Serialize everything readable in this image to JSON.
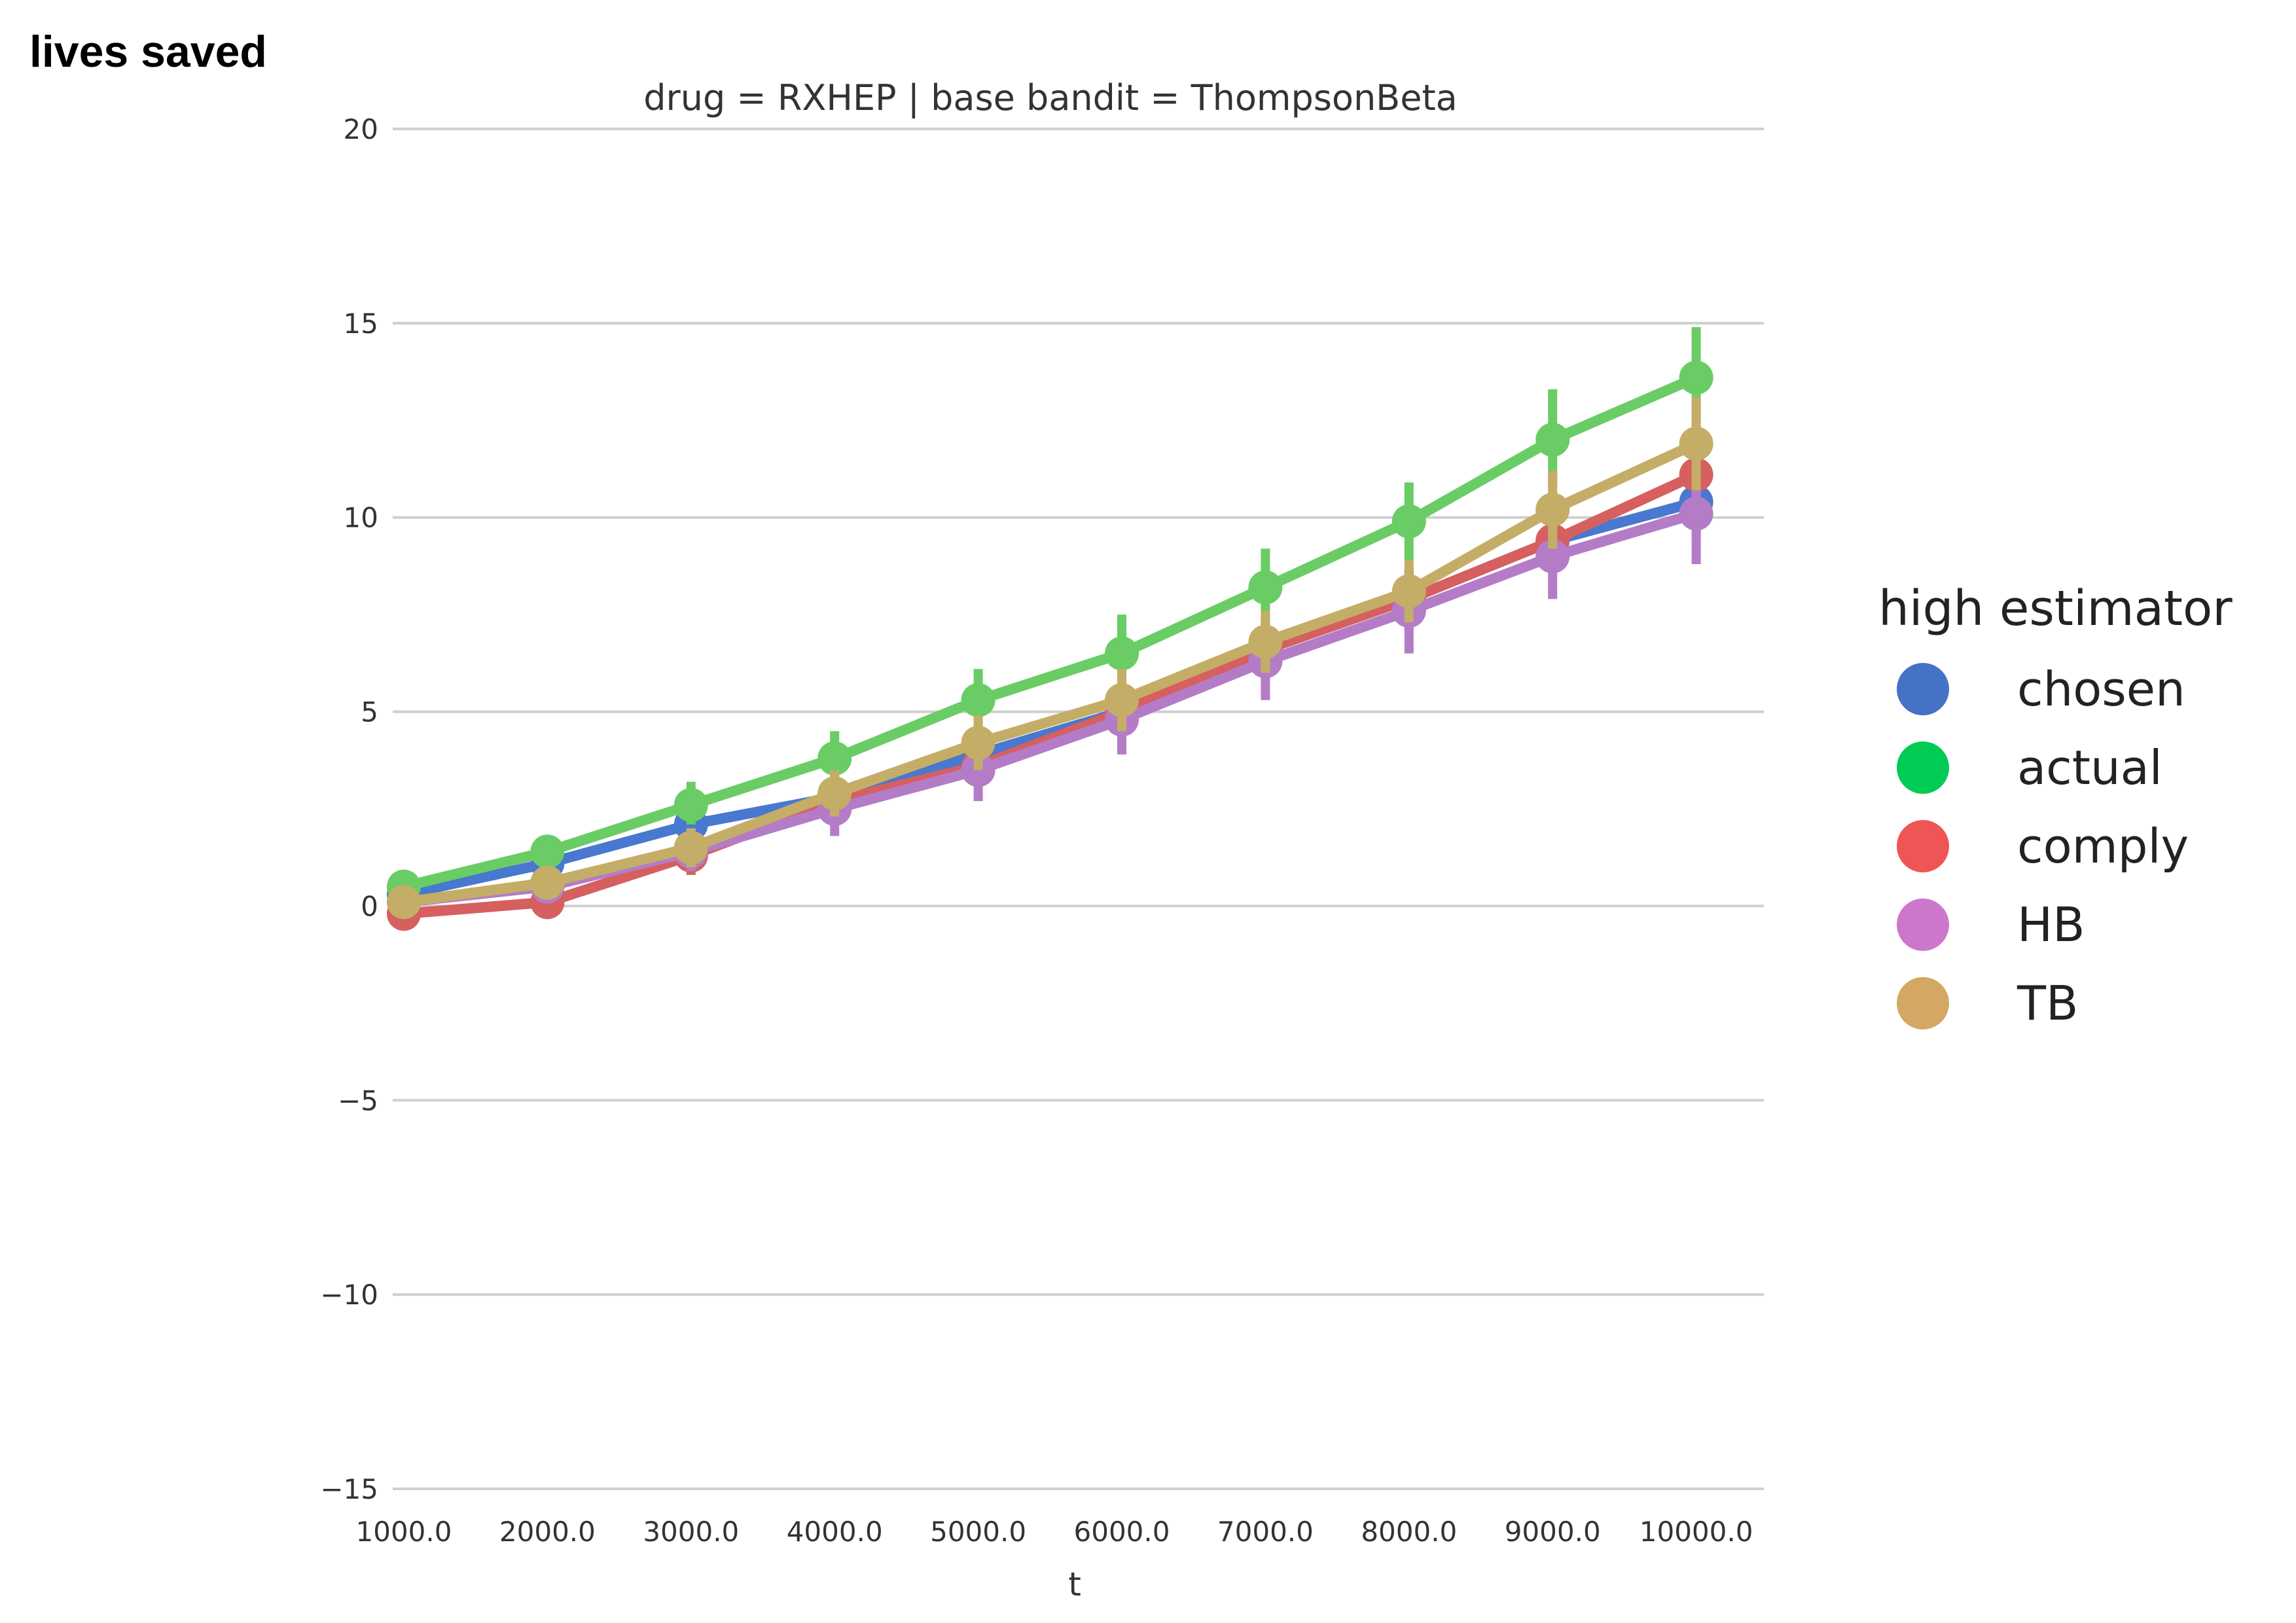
{
  "chart_data": {
    "type": "line",
    "title": "drug = RXHEP | base bandit = ThompsonBeta",
    "xlabel": "t",
    "ylabel": "lives saved",
    "categories": [
      "1000.0",
      "2000.0",
      "3000.0",
      "4000.0",
      "5000.0",
      "6000.0",
      "7000.0",
      "8000.0",
      "9000.0",
      "10000.0"
    ],
    "ylim": [
      -15,
      20
    ],
    "yticks": [
      "20",
      "15",
      "10",
      "5",
      "0",
      "−5",
      "−10",
      "−15"
    ],
    "ytick_values": [
      20,
      15,
      10,
      5,
      0,
      -5,
      -10,
      -15
    ],
    "grid": true,
    "legend": {
      "title": "high estimator",
      "placement": "right"
    },
    "series": [
      {
        "name": "chosen",
        "color": "#4878cf",
        "values": [
          0.3,
          1.1,
          2.1,
          2.8,
          3.9,
          5.0,
          6.6,
          7.9,
          9.4,
          10.4
        ],
        "err_low": [
          0.0,
          0.7,
          1.7,
          2.3,
          3.3,
          4.3,
          5.9,
          7.2,
          8.6,
          9.5
        ],
        "err_high": [
          0.6,
          1.5,
          2.5,
          3.3,
          4.5,
          5.7,
          7.3,
          8.6,
          10.2,
          11.3
        ]
      },
      {
        "name": "actual",
        "color": "#6acc65",
        "values": [
          0.5,
          1.4,
          2.6,
          3.8,
          5.3,
          6.5,
          8.2,
          9.9,
          12.0,
          13.6
        ],
        "err_low": [
          0.2,
          1.0,
          2.1,
          3.2,
          4.5,
          5.6,
          7.2,
          8.9,
          10.8,
          12.3
        ],
        "err_high": [
          0.9,
          1.8,
          3.2,
          4.5,
          6.1,
          7.5,
          9.2,
          10.9,
          13.3,
          14.9
        ]
      },
      {
        "name": "comply",
        "color": "#d65f5f",
        "values": [
          -0.2,
          0.1,
          1.3,
          2.7,
          3.6,
          5.0,
          6.6,
          7.9,
          9.4,
          11.1
        ],
        "err_low": [
          -0.5,
          -0.3,
          0.8,
          2.1,
          3.0,
          4.3,
          5.9,
          7.1,
          8.6,
          10.2
        ],
        "err_high": [
          0.1,
          0.5,
          1.8,
          3.3,
          4.2,
          5.7,
          7.3,
          8.7,
          10.2,
          12.0
        ]
      },
      {
        "name": "HB",
        "color": "#b47cc7",
        "values": [
          0.1,
          0.5,
          1.4,
          2.5,
          3.5,
          4.8,
          6.3,
          7.6,
          9.0,
          10.1
        ],
        "err_low": [
          -0.2,
          0.1,
          0.9,
          1.8,
          2.7,
          3.9,
          5.3,
          6.5,
          7.9,
          8.8
        ],
        "err_high": [
          0.4,
          0.9,
          1.9,
          3.2,
          4.3,
          5.7,
          7.3,
          8.7,
          10.1,
          11.4
        ]
      },
      {
        "name": "TB",
        "color": "#c4ad66",
        "values": [
          0.1,
          0.6,
          1.5,
          2.9,
          4.2,
          5.3,
          6.8,
          8.1,
          10.2,
          11.9
        ],
        "err_low": [
          -0.2,
          0.2,
          1.0,
          2.3,
          3.5,
          4.5,
          6.0,
          7.3,
          9.2,
          10.7
        ],
        "err_high": [
          0.4,
          1.0,
          2.0,
          3.5,
          4.9,
          6.1,
          7.6,
          8.9,
          11.2,
          13.1
        ]
      }
    ]
  },
  "legend_swatch_colors": {
    "chosen": "#4472c4",
    "actual": "#00cc55",
    "comply": "#ee5555",
    "HB": "#cc77cc",
    "TB": "#d4a862"
  }
}
